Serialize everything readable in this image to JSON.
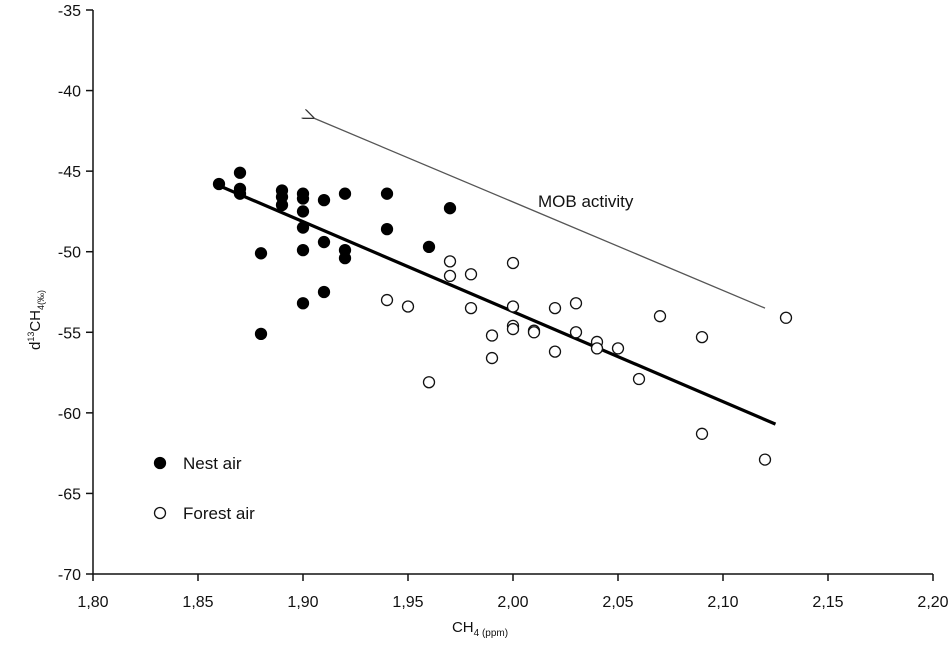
{
  "chart_data": {
    "type": "scatter",
    "xlabel_main": "CH",
    "xlabel_sub": "4 (ppm)",
    "ylabel_prefix": "d",
    "ylabel_sup": "13",
    "ylabel_main": "CH",
    "ylabel_sub": "4(‰)",
    "xlim": [
      1.8,
      2.2
    ],
    "ylim": [
      -70,
      -35
    ],
    "x_ticks": [
      1.8,
      1.85,
      1.9,
      1.95,
      2.0,
      2.05,
      2.1,
      2.15,
      2.2
    ],
    "x_tick_labels": [
      "1,80",
      "1,85",
      "1,90",
      "1,95",
      "2,00",
      "2,05",
      "2,10",
      "2,15",
      "2,20"
    ],
    "y_ticks": [
      -35,
      -40,
      -45,
      -50,
      -55,
      -60,
      -65,
      -70
    ],
    "y_tick_labels": [
      "-35",
      "-40",
      "-45",
      "-50",
      "-55",
      "-60",
      "-65",
      "-70"
    ],
    "grid": false,
    "legend_placement": "bottom-left",
    "annotation": {
      "text": "MOB activity",
      "arrow_from": [
        2.12,
        -53.5
      ],
      "arrow_to": [
        1.905,
        -41.7
      ]
    },
    "regression_line": {
      "x": [
        1.86,
        2.125
      ],
      "y": [
        -45.9,
        -60.7
      ]
    },
    "series": [
      {
        "name": "Nest air",
        "marker": "filled",
        "points": [
          [
            1.86,
            -45.8
          ],
          [
            1.87,
            -45.1
          ],
          [
            1.87,
            -46.1
          ],
          [
            1.87,
            -46.4
          ],
          [
            1.88,
            -50.1
          ],
          [
            1.88,
            -55.1
          ],
          [
            1.89,
            -46.2
          ],
          [
            1.89,
            -46.6
          ],
          [
            1.89,
            -47.1
          ],
          [
            1.9,
            -46.4
          ],
          [
            1.9,
            -46.7
          ],
          [
            1.9,
            -47.5
          ],
          [
            1.9,
            -48.5
          ],
          [
            1.9,
            -49.9
          ],
          [
            1.9,
            -53.2
          ],
          [
            1.91,
            -46.8
          ],
          [
            1.91,
            -49.4
          ],
          [
            1.91,
            -52.5
          ],
          [
            1.92,
            -46.4
          ],
          [
            1.92,
            -49.9
          ],
          [
            1.92,
            -50.4
          ],
          [
            1.94,
            -46.4
          ],
          [
            1.94,
            -48.6
          ],
          [
            1.96,
            -49.7
          ],
          [
            1.97,
            -47.3
          ]
        ]
      },
      {
        "name": "Forest air",
        "marker": "open",
        "points": [
          [
            1.94,
            -53.0
          ],
          [
            1.95,
            -53.4
          ],
          [
            1.96,
            -58.1
          ],
          [
            1.97,
            -50.6
          ],
          [
            1.97,
            -51.5
          ],
          [
            1.98,
            -51.4
          ],
          [
            1.98,
            -53.5
          ],
          [
            1.99,
            -55.2
          ],
          [
            1.99,
            -56.6
          ],
          [
            2.0,
            -50.7
          ],
          [
            2.0,
            -53.4
          ],
          [
            2.0,
            -54.6
          ],
          [
            2.0,
            -54.8
          ],
          [
            2.01,
            -54.9
          ],
          [
            2.01,
            -55.0
          ],
          [
            2.02,
            -53.5
          ],
          [
            2.02,
            -56.2
          ],
          [
            2.03,
            -53.2
          ],
          [
            2.03,
            -55.0
          ],
          [
            2.04,
            -55.6
          ],
          [
            2.04,
            -56.0
          ],
          [
            2.05,
            -56.0
          ],
          [
            2.06,
            -57.9
          ],
          [
            2.07,
            -54.0
          ],
          [
            2.09,
            -55.3
          ],
          [
            2.09,
            -61.3
          ],
          [
            2.12,
            -62.9
          ],
          [
            2.13,
            -54.1
          ]
        ]
      }
    ]
  }
}
